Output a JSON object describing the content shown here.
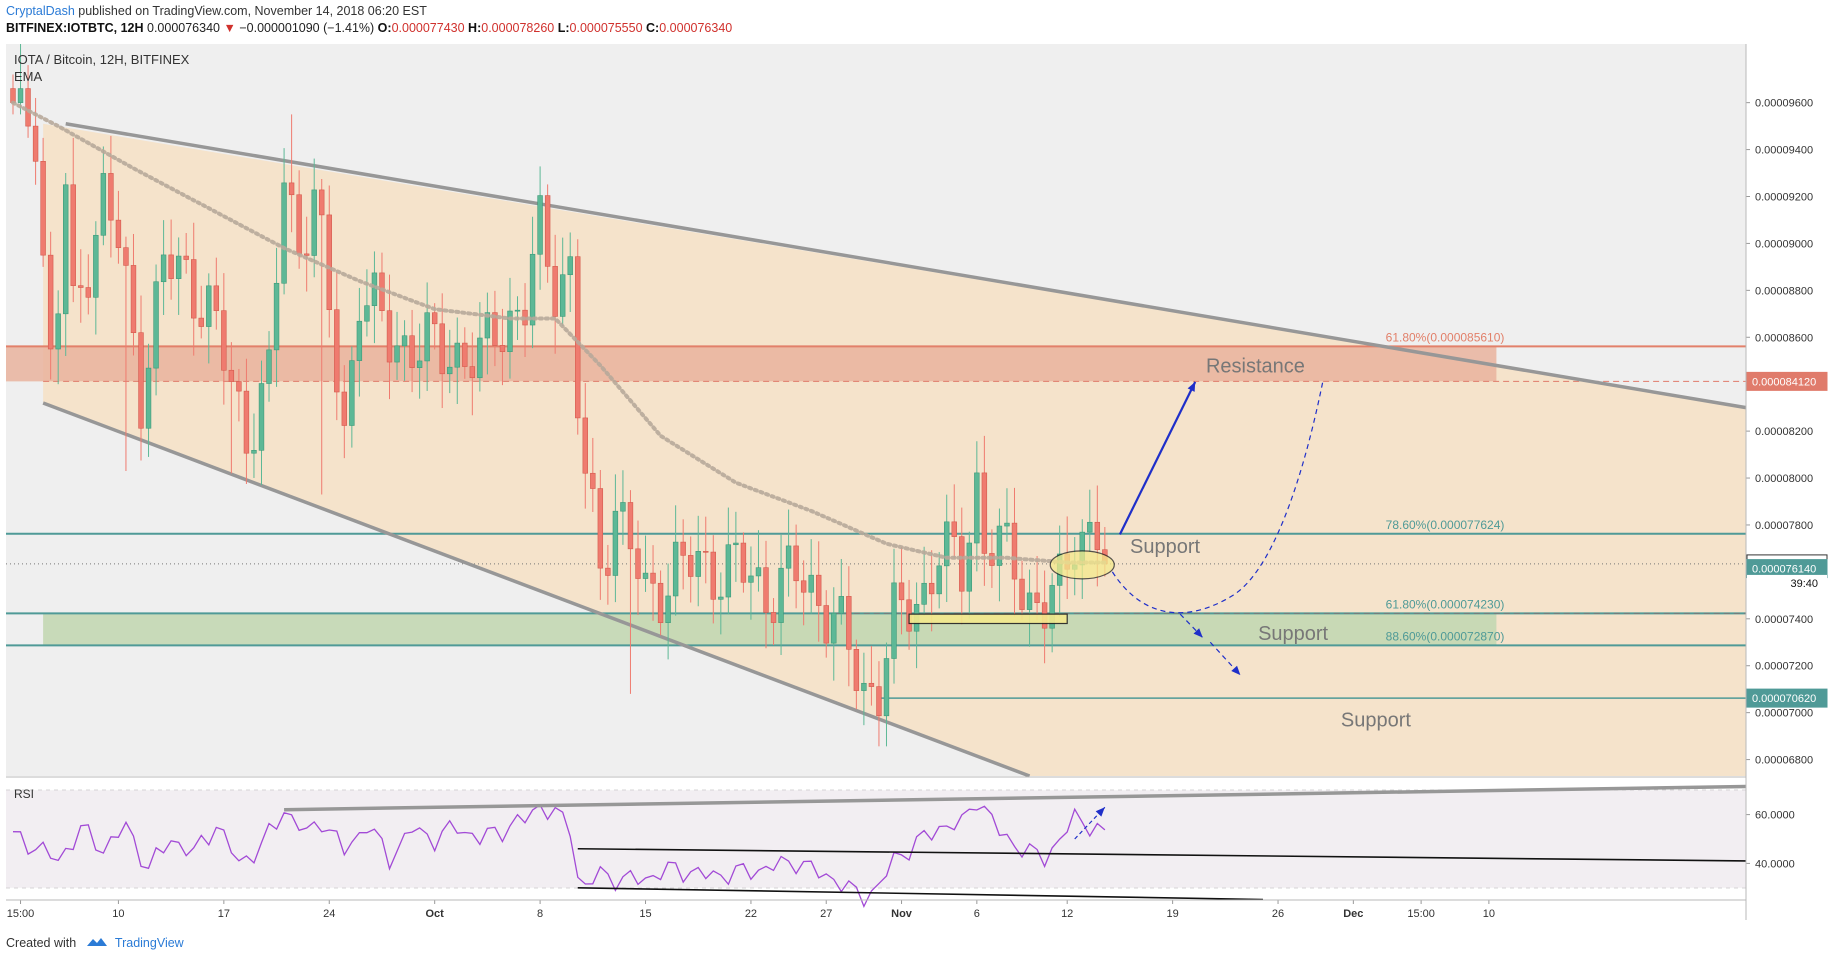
{
  "header": {
    "author": "CryptalDash",
    "published_text": "published on TradingView.com, November 14, 2018 06:20 EST"
  },
  "ohlc": {
    "symbol": "BITFINEX:IOTBTC, 12H",
    "last": "0.000076340",
    "arrow": "▼",
    "change": "−0.000001090 (−1.41%)",
    "o_label": "O:",
    "o": "0.000077430",
    "h_label": "H:",
    "h": "0.000078260",
    "l_label": "L:",
    "l": "0.000075550",
    "c_label": "C:",
    "c": "0.000076340"
  },
  "footer": {
    "created_with": "Created with",
    "brand": "TradingView"
  },
  "colors": {
    "up": "#5db896",
    "down": "#ef7b6f",
    "channel_fill": "#f5e3cb",
    "resistance_fill": "#e9b39d",
    "support_fill": "#c3d7b3",
    "rsi_line": "#a24ad6",
    "level_line": "#4f9a97",
    "trend_line": "#979797",
    "arrow": "#1f2fc9"
  },
  "chart_data": {
    "type": "candlestick",
    "title": "IOTA / Bitcoin, 12H, BITFINEX",
    "indicator_label": "EMA",
    "ylim": [
      6.73e-05,
      9.85e-05
    ],
    "price_ticks": [
      "0.00009600",
      "0.00009400",
      "0.00009200",
      "0.00009000",
      "0.00008800",
      "0.00008600",
      "0.00008200",
      "0.00008000",
      "0.00007800",
      "0.00007400",
      "0.00007200",
      "0.00007000",
      "0.00006800"
    ],
    "x_ticks": [
      {
        "label": "15:00",
        "i": 1
      },
      {
        "label": "10",
        "i": 14
      },
      {
        "label": "17",
        "i": 28
      },
      {
        "label": "24",
        "i": 42
      },
      {
        "label": "Oct",
        "i": 56
      },
      {
        "label": "8",
        "i": 70
      },
      {
        "label": "15",
        "i": 84
      },
      {
        "label": "22",
        "i": 98
      },
      {
        "label": "27",
        "i": 108
      },
      {
        "label": "Nov",
        "i": 118
      },
      {
        "label": "6",
        "i": 128
      },
      {
        "label": "12",
        "i": 140
      },
      {
        "label": "19",
        "i": 154
      },
      {
        "label": "26",
        "i": 168
      },
      {
        "label": "Dec",
        "i": 178
      },
      {
        "label": "15:00",
        "i": 187
      },
      {
        "label": "10",
        "i": 196
      }
    ],
    "ohlc_seed": [
      [
        9.66e-05,
        9.72e-05,
        9.55e-05,
        9.6e-05
      ],
      [
        9.6e-05,
        9.85e-05,
        9.55e-05,
        9.66e-05
      ],
      [
        9.66e-05,
        9.76e-05,
        9.45e-05,
        9.5e-05
      ],
      [
        9.5e-05,
        9.62e-05,
        9.25e-05,
        9.35e-05
      ],
      [
        9.35e-05,
        9.45e-05,
        8.9e-05,
        8.95e-05
      ],
      [
        8.95e-05,
        9.05e-05,
        8.42e-05,
        8.55e-05
      ],
      [
        8.55e-05,
        8.8e-05,
        8.4e-05,
        8.7e-05
      ],
      [
        8.7e-05,
        9.3e-05,
        8.52e-05,
        9.25e-05
      ],
      [
        9.25e-05,
        9.45e-05,
        8.75e-05,
        8.82e-05
      ]
    ],
    "close_waypoints": [
      [
        9,
        8.82e-05
      ],
      [
        12,
        9.2e-05
      ],
      [
        14,
        9e-05
      ],
      [
        17,
        8.38e-05
      ],
      [
        20,
        8.9e-05
      ],
      [
        23,
        8.87e-05
      ],
      [
        26,
        8.72e-05
      ],
      [
        28,
        8.5e-05
      ],
      [
        31,
        8.2e-05
      ],
      [
        34,
        8.4e-05
      ],
      [
        36,
        9.3e-05
      ],
      [
        38,
        9e-05
      ],
      [
        40,
        9.2e-05
      ],
      [
        42,
        8.7e-05
      ],
      [
        44,
        8.2e-05
      ],
      [
        46,
        8.8e-05
      ],
      [
        50,
        8.6e-05
      ],
      [
        54,
        8.55e-05
      ],
      [
        58,
        8.55e-05
      ],
      [
        62,
        8.48e-05
      ],
      [
        64,
        8.65e-05
      ],
      [
        66,
        8.68e-05
      ],
      [
        68,
        8.72e-05
      ],
      [
        70,
        9.05e-05
      ],
      [
        72,
        8.85e-05
      ],
      [
        74,
        8.88e-05
      ],
      [
        75,
        8.3e-05
      ],
      [
        76,
        8e-05
      ],
      [
        78,
        7.62e-05
      ],
      [
        80,
        7.9e-05
      ],
      [
        82,
        7.7e-05
      ],
      [
        84,
        7.48e-05
      ],
      [
        88,
        7.62e-05
      ],
      [
        92,
        7.62e-05
      ],
      [
        96,
        7.62e-05
      ],
      [
        100,
        7.52e-05
      ],
      [
        104,
        7.58e-05
      ],
      [
        107,
        7.5e-05
      ],
      [
        109,
        7.4e-05
      ],
      [
        111,
        7.25e-05
      ],
      [
        113,
        7.1e-05
      ],
      [
        115,
        7.12e-05
      ],
      [
        117,
        7.38e-05
      ],
      [
        119,
        7.45e-05
      ],
      [
        121,
        7.52e-05
      ],
      [
        123,
        7.68e-05
      ],
      [
        126,
        7.62e-05
      ],
      [
        128,
        7.98e-05
      ],
      [
        129,
        7.72e-05
      ],
      [
        131,
        7.68e-05
      ],
      [
        133,
        7.65e-05
      ],
      [
        135,
        7.48e-05
      ],
      [
        137,
        7.43e-05
      ],
      [
        139,
        7.52e-05
      ],
      [
        141,
        7.79e-05
      ],
      [
        143,
        7.75e-05
      ],
      [
        144,
        7.74e-05
      ],
      [
        145,
        7.634e-05
      ]
    ],
    "ema_waypoints": [
      [
        0,
        9.6e-05
      ],
      [
        6,
        9.5e-05
      ],
      [
        16,
        9.32e-05
      ],
      [
        26,
        9.15e-05
      ],
      [
        36,
        8.98e-05
      ],
      [
        46,
        8.84e-05
      ],
      [
        56,
        8.72e-05
      ],
      [
        66,
        8.68e-05
      ],
      [
        72,
        8.68e-05
      ],
      [
        78,
        8.48e-05
      ],
      [
        86,
        8.18e-05
      ],
      [
        96,
        7.98e-05
      ],
      [
        106,
        7.86e-05
      ],
      [
        116,
        7.72e-05
      ],
      [
        124,
        7.66e-05
      ],
      [
        132,
        7.66e-05
      ],
      [
        140,
        7.64e-05
      ],
      [
        145,
        7.64e-05
      ]
    ],
    "levels": [
      {
        "label": "61.80%(0.000085610)",
        "value": 8.561e-05,
        "color": "#e2806a"
      },
      {
        "label": "78.60%(0.000077624)",
        "value": 7.7624e-05,
        "color": "#4f9a97"
      },
      {
        "label": "61.80%(0.000074230)",
        "value": 7.423e-05,
        "color": "#4f9a97"
      },
      {
        "label": "88.60%(0.000072870)",
        "value": 7.287e-05,
        "color": "#4f9a97"
      }
    ],
    "price_badges": [
      {
        "label": "0.000084120",
        "value": 8.412e-05,
        "bg": "#e07b6b",
        "fg": "#ffffff"
      },
      {
        "label": "0.000076340",
        "value": 7.634e-05,
        "bg": "#ffffff",
        "fg": "#111111"
      },
      {
        "label": "0.000076140",
        "value": 7.614e-05,
        "bg": "#4f9a97",
        "fg": "#ffffff"
      },
      {
        "label": "0.000070620",
        "value": 7.062e-05,
        "bg": "#4f9a97",
        "fg": "#ffffff"
      }
    ],
    "countdown": "39:40",
    "annotations": [
      {
        "text": "Resistance",
        "i": 165,
        "y": 8.45e-05
      },
      {
        "text": "Support",
        "i": 153,
        "y": 7.68e-05
      },
      {
        "text": "Support",
        "i": 170,
        "y": 7.31e-05
      },
      {
        "text": "Support",
        "i": 181,
        "y": 6.94e-05
      }
    ],
    "rsi": {
      "label": "RSI",
      "ylim": [
        25,
        75
      ],
      "ticks": [
        "60.0000",
        "40.0000"
      ],
      "waypoints": [
        [
          0,
          51
        ],
        [
          3,
          47
        ],
        [
          6,
          41
        ],
        [
          9,
          54
        ],
        [
          12,
          46
        ],
        [
          15,
          55
        ],
        [
          18,
          38
        ],
        [
          21,
          50
        ],
        [
          24,
          44
        ],
        [
          27,
          56
        ],
        [
          30,
          40
        ],
        [
          33,
          47
        ],
        [
          36,
          62
        ],
        [
          39,
          52
        ],
        [
          41,
          58
        ],
        [
          44,
          45
        ],
        [
          47,
          56
        ],
        [
          50,
          42
        ],
        [
          53,
          54
        ],
        [
          56,
          50
        ],
        [
          59,
          55
        ],
        [
          62,
          50
        ],
        [
          65,
          54
        ],
        [
          68,
          58
        ],
        [
          70,
          64
        ],
        [
          72,
          60
        ],
        [
          74,
          55
        ],
        [
          75,
          35
        ],
        [
          76,
          30
        ],
        [
          78,
          36
        ],
        [
          81,
          33
        ],
        [
          84,
          34
        ],
        [
          88,
          38
        ],
        [
          92,
          35
        ],
        [
          96,
          36
        ],
        [
          100,
          38
        ],
        [
          104,
          41
        ],
        [
          107,
          36
        ],
        [
          109,
          34
        ],
        [
          111,
          29
        ],
        [
          113,
          27
        ],
        [
          115,
          30
        ],
        [
          117,
          42
        ],
        [
          120,
          48
        ],
        [
          123,
          55
        ],
        [
          126,
          56
        ],
        [
          128,
          67
        ],
        [
          129,
          62
        ],
        [
          131,
          53
        ],
        [
          133,
          48
        ],
        [
          135,
          44
        ],
        [
          137,
          43
        ],
        [
          139,
          49
        ],
        [
          141,
          59
        ],
        [
          143,
          56
        ],
        [
          145,
          51
        ]
      ]
    }
  }
}
